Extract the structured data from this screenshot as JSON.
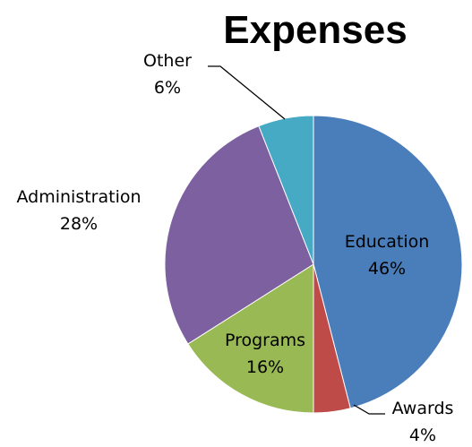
{
  "chart_data": {
    "type": "pie",
    "title": "Expenses",
    "slices": [
      {
        "name": "Education",
        "percent_label": "46%",
        "value": 46,
        "color": "#4a7ebb"
      },
      {
        "name": "Awards",
        "percent_label": "4%",
        "value": 4,
        "color": "#be4b48"
      },
      {
        "name": "Programs",
        "percent_label": "16%",
        "value": 16,
        "color": "#98b954"
      },
      {
        "name": "Administration",
        "percent_label": "28%",
        "value": 28,
        "color": "#7d60a0"
      },
      {
        "name": "Other",
        "percent_label": "6%",
        "value": 6,
        "color": "#46aac5"
      }
    ],
    "start_angle_deg": 0,
    "direction": "clockwise",
    "legend": "none"
  }
}
